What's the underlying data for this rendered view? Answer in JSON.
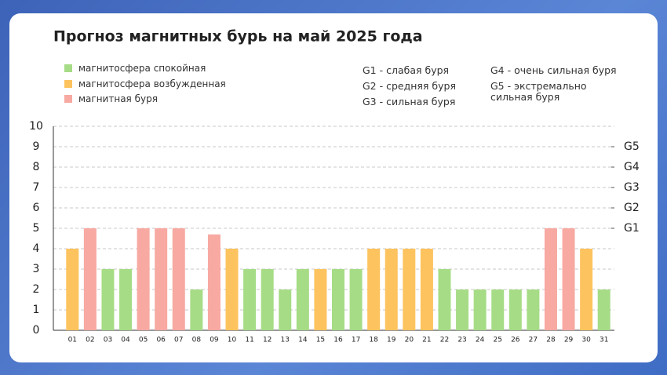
{
  "chart_data": {
    "type": "bar",
    "title": "Прогноз магнитных бурь на май 2025 года",
    "legend": [
      {
        "name": "магнитосфера спокойная",
        "color": "#a6dc86"
      },
      {
        "name": "магнитосфера возбужденная",
        "color": "#fdc35e"
      },
      {
        "name": "магнитная буря",
        "color": "#f7a9a2"
      }
    ],
    "scale_notes": [
      "G1 - слабая буря",
      "G2 - средняя буря",
      "G3 - сильная буря",
      "G4 - очень сильная буря",
      "G5 - экстремально сильная буря"
    ],
    "categories": [
      "01",
      "02",
      "03",
      "04",
      "05",
      "06",
      "07",
      "08",
      "09",
      "10",
      "11",
      "12",
      "13",
      "14",
      "15",
      "16",
      "17",
      "18",
      "19",
      "20",
      "21",
      "22",
      "23",
      "24",
      "25",
      "26",
      "27",
      "28",
      "29",
      "30",
      "31"
    ],
    "values": [
      4,
      5,
      3,
      3,
      5,
      5,
      5,
      2,
      4.7,
      4,
      3,
      3,
      2,
      3,
      3,
      3,
      3,
      4,
      4,
      4,
      4,
      3,
      2,
      2,
      2,
      2,
      2,
      5,
      5,
      4,
      2
    ],
    "colors": [
      "#fdc35e",
      "#f7a9a2",
      "#a6dc86",
      "#a6dc86",
      "#f7a9a2",
      "#f7a9a2",
      "#f7a9a2",
      "#a6dc86",
      "#f7a9a2",
      "#fdc35e",
      "#a6dc86",
      "#a6dc86",
      "#a6dc86",
      "#a6dc86",
      "#fdc35e",
      "#a6dc86",
      "#a6dc86",
      "#fdc35e",
      "#fdc35e",
      "#fdc35e",
      "#fdc35e",
      "#a6dc86",
      "#a6dc86",
      "#a6dc86",
      "#a6dc86",
      "#a6dc86",
      "#a6dc86",
      "#f7a9a2",
      "#f7a9a2",
      "#fdc35e",
      "#a6dc86"
    ],
    "ylim": [
      0,
      10
    ],
    "yticks": [
      0,
      1,
      2,
      3,
      4,
      5,
      6,
      7,
      8,
      9,
      10
    ],
    "y2lim": [
      0,
      10
    ],
    "y2ticks": [
      {
        "value": 5,
        "label": "G1"
      },
      {
        "value": 6,
        "label": "G2"
      },
      {
        "value": 7,
        "label": "G3"
      },
      {
        "value": 8,
        "label": "G4"
      },
      {
        "value": 9,
        "label": "G5"
      }
    ],
    "grid": true
  }
}
